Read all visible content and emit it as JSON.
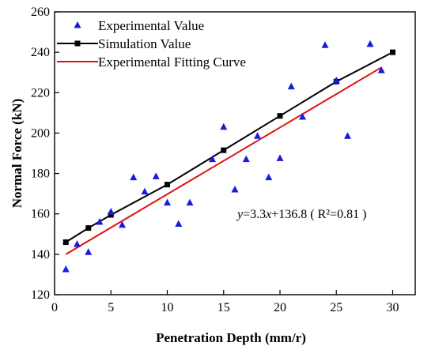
{
  "chart_data": {
    "type": "scatter",
    "title": "",
    "xlabel": "Penetration Depth (mm/r)",
    "ylabel": "Normal Force (kN)",
    "xlim": [
      0,
      32
    ],
    "ylim": [
      120,
      260
    ],
    "xticks": [
      0,
      5,
      10,
      15,
      20,
      25,
      30
    ],
    "yticks": [
      120,
      140,
      160,
      180,
      200,
      220,
      240,
      260
    ],
    "grid": false,
    "legend_position": "top-left",
    "series": [
      {
        "name": "Experimental Value",
        "type": "scatter",
        "marker": "triangle",
        "color": "#1a1adb",
        "x": [
          1,
          2,
          3,
          4,
          5,
          6,
          7,
          8,
          9,
          10,
          11,
          12,
          14,
          15,
          16,
          17,
          18,
          19,
          20,
          21,
          22,
          24,
          25,
          26,
          28,
          29
        ],
        "y": [
          132.5,
          145,
          141,
          156,
          161,
          154.5,
          178,
          171,
          178.5,
          165.5,
          155,
          165.5,
          187,
          203,
          172,
          187,
          198.5,
          178,
          187.5,
          223,
          208,
          243.5,
          226,
          198.5,
          244,
          231
        ]
      },
      {
        "name": "Simulation Value",
        "type": "line",
        "marker": "square",
        "color": "#000000",
        "x": [
          1,
          3,
          5,
          10,
          15,
          20,
          25,
          30
        ],
        "y": [
          146,
          153,
          159.5,
          174.5,
          191.5,
          208.5,
          225.5,
          240
        ]
      },
      {
        "name": "Experimental Fitting Curve",
        "type": "line",
        "color": "#e01010",
        "x": [
          1,
          29
        ],
        "y": [
          140,
          232.5
        ]
      }
    ],
    "annotation": {
      "y_prefix": "y",
      "equation_mid": "=3.3",
      "x_var": "x",
      "equation_tail": "+136.8  ( R²=0.81 )"
    }
  }
}
